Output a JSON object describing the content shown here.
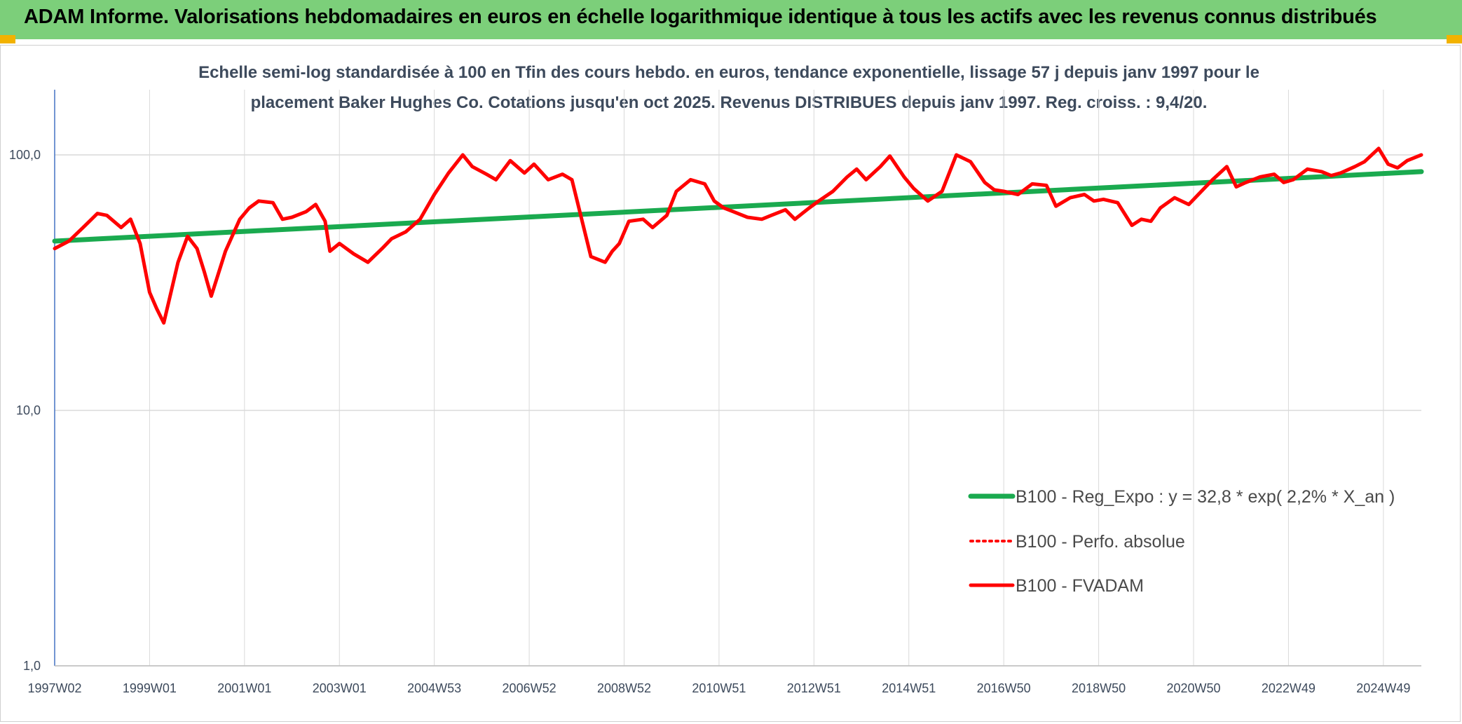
{
  "banner": {
    "title": "ADAM Informe. Valorisations hebdomadaires en euros en échelle logarithmique identique à tous les actifs avec les revenus connus distribués"
  },
  "colors": {
    "banner_bg": "#7ccf7a",
    "corner": "#f2b200",
    "regression": "#1aaa4f",
    "fvadam": "#ff0000",
    "perfo": "#ff0000",
    "grid": "#d9d9d9",
    "axis": "#4472c4",
    "text": "#3d4a5c"
  },
  "chart_data": {
    "type": "line",
    "title_line1": "Echelle semi-log standardisée à 100 en Tfin des cours hebdo. en euros, tendance exponentielle, lissage 57 j depuis janv 1997 pour le",
    "title_line2": "placement Baker Hughes Co. Cotations jusqu'en oct 2025. Revenus DISTRIBUES depuis janv 1997. Reg. croiss. : 9,4/20.",
    "y_scale": "log",
    "ylim": [
      1,
      180
    ],
    "y_ticks": [
      {
        "value": 100,
        "label": "100,0"
      },
      {
        "value": 10,
        "label": "10,0"
      },
      {
        "value": 1,
        "label": "1,0"
      }
    ],
    "xlim": [
      1997.0,
      2025.8
    ],
    "x_ticks": [
      {
        "x": 1997.0,
        "label": "1997W02"
      },
      {
        "x": 1999.0,
        "label": "1999W01"
      },
      {
        "x": 2001.0,
        "label": "2001W01"
      },
      {
        "x": 2003.0,
        "label": "2003W01"
      },
      {
        "x": 2005.0,
        "label": "2004W53"
      },
      {
        "x": 2007.0,
        "label": "2006W52"
      },
      {
        "x": 2009.0,
        "label": "2008W52"
      },
      {
        "x": 2011.0,
        "label": "2010W51"
      },
      {
        "x": 2013.0,
        "label": "2012W51"
      },
      {
        "x": 2015.0,
        "label": "2014W51"
      },
      {
        "x": 2017.0,
        "label": "2016W50"
      },
      {
        "x": 2019.0,
        "label": "2018W50"
      },
      {
        "x": 2021.0,
        "label": "2020W50"
      },
      {
        "x": 2023.0,
        "label": "2022W49"
      },
      {
        "x": 2025.0,
        "label": "2024W49"
      }
    ],
    "legend_position": "lower-right",
    "series": [
      {
        "name": "B100 - Reg_Expo : y = 32,8 * exp( 2,2% *  X_an )",
        "style": "solid-thick",
        "color": "#1aaa4f",
        "x": [
          1997.0,
          2025.8
        ],
        "values": [
          46,
          86
        ]
      },
      {
        "name": "B100 - Perfo. absolue",
        "style": "dotted",
        "color": "#ff0000",
        "x": [],
        "values": []
      },
      {
        "name": "B100 - FVADAM",
        "style": "solid",
        "color": "#ff0000",
        "x": [
          1997.0,
          1997.3,
          1997.6,
          1997.9,
          1998.1,
          1998.4,
          1998.6,
          1998.8,
          1999.0,
          1999.15,
          1999.3,
          1999.6,
          1999.8,
          2000.0,
          2000.15,
          2000.3,
          2000.6,
          2000.9,
          2001.1,
          2001.3,
          2001.6,
          2001.8,
          2002.0,
          2002.3,
          2002.5,
          2002.7,
          2002.8,
          2003.0,
          2003.3,
          2003.6,
          2003.9,
          2004.1,
          2004.4,
          2004.7,
          2005.0,
          2005.3,
          2005.6,
          2005.8,
          2006.1,
          2006.3,
          2006.6,
          2006.9,
          2007.1,
          2007.4,
          2007.7,
          2007.9,
          2008.3,
          2008.6,
          2008.75,
          2008.9,
          2009.1,
          2009.4,
          2009.6,
          2009.9,
          2010.1,
          2010.4,
          2010.7,
          2010.9,
          2011.1,
          2011.3,
          2011.6,
          2011.9,
          2012.1,
          2012.4,
          2012.6,
          2012.9,
          2013.1,
          2013.4,
          2013.7,
          2013.9,
          2014.1,
          2014.4,
          2014.6,
          2014.9,
          2015.1,
          2015.4,
          2015.7,
          2016.0,
          2016.3,
          2016.6,
          2016.8,
          2017.0,
          2017.3,
          2017.6,
          2017.9,
          2018.1,
          2018.4,
          2018.7,
          2018.9,
          2019.1,
          2019.4,
          2019.7,
          2019.9,
          2020.1,
          2020.3,
          2020.6,
          2020.9,
          2021.1,
          2021.4,
          2021.7,
          2021.9,
          2022.1,
          2022.4,
          2022.7,
          2022.9,
          2023.1,
          2023.4,
          2023.7,
          2023.9,
          2024.1,
          2024.4,
          2024.6,
          2024.9,
          2025.1,
          2025.3,
          2025.5,
          2025.8
        ],
        "values": [
          43,
          46,
          52,
          59,
          58,
          52,
          56,
          45,
          29,
          25,
          22,
          38,
          48,
          43,
          35,
          28,
          42,
          56,
          62,
          66,
          65,
          56,
          57,
          60,
          64,
          55,
          42,
          45,
          41,
          38,
          43,
          47,
          50,
          56,
          70,
          85,
          100,
          90,
          84,
          80,
          95,
          85,
          92,
          80,
          84,
          80,
          40,
          38,
          42,
          45,
          55,
          56,
          52,
          58,
          72,
          80,
          77,
          66,
          62,
          60,
          57,
          56,
          58,
          61,
          56,
          62,
          66,
          72,
          82,
          88,
          80,
          90,
          99,
          82,
          74,
          66,
          72,
          100,
          94,
          78,
          73,
          72,
          70,
          77,
          76,
          63,
          68,
          70,
          66,
          67,
          65,
          53,
          56,
          55,
          62,
          68,
          64,
          70,
          80,
          90,
          75,
          78,
          82,
          84,
          78,
          80,
          88,
          86,
          83,
          85,
          90,
          94,
          106,
          92,
          89,
          95,
          100
        ]
      }
    ]
  }
}
